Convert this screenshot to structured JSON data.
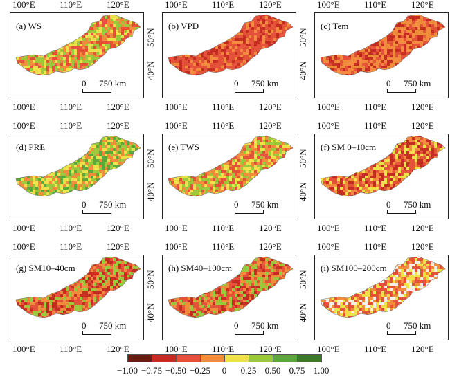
{
  "lon_labels": [
    "100°E",
    "110°E",
    "120°E"
  ],
  "lat_labels": [
    "40°N",
    "50°N"
  ],
  "scale_zero": "0",
  "scale_length": "750 km",
  "legend": {
    "colors": [
      "#6b1b12",
      "#c52d22",
      "#e4523a",
      "#f08c3c",
      "#eee149",
      "#9cc83c",
      "#5aa73a",
      "#3c7a27"
    ],
    "labels": [
      "−1.00",
      "−0.75",
      "−0.50",
      "−0.25",
      "0",
      "0.25",
      "0.50",
      "0.75",
      "1.00"
    ]
  },
  "panels": [
    {
      "title": "(a) WS",
      "mix": [
        "#e4523a",
        "#f08c3c",
        "#eee149",
        "#9cc83c"
      ]
    },
    {
      "title": "(b) VPD",
      "mix": [
        "#c52d22",
        "#e4523a",
        "#e4523a",
        "#f08c3c"
      ]
    },
    {
      "title": "(c) Tem",
      "mix": [
        "#c52d22",
        "#e4523a",
        "#f08c3c",
        "#f08c3c"
      ]
    },
    {
      "title": "(d) PRE",
      "mix": [
        "#5aa73a",
        "#9cc83c",
        "#eee149",
        "#f08c3c"
      ]
    },
    {
      "title": "(e) TWS",
      "mix": [
        "#e4523a",
        "#f08c3c",
        "#eee149",
        "#9cc83c"
      ]
    },
    {
      "title": "(f) SM 0–10cm",
      "mix": [
        "#c52d22",
        "#e4523a",
        "#f08c3c",
        "#eee149"
      ]
    },
    {
      "title": "(g) SM10–40cm",
      "mix": [
        "#c52d22",
        "#e4523a",
        "#f08c3c",
        "#9cc83c"
      ]
    },
    {
      "title": "(h) SM40–100cm",
      "mix": [
        "#c52d22",
        "#e4523a",
        "#f08c3c",
        "#9cc83c"
      ]
    },
    {
      "title": "(i) SM100–200cm",
      "mix": [
        "#e4523a",
        "#f08c3c",
        "#f6f0e6",
        "#eee149"
      ]
    }
  ]
}
